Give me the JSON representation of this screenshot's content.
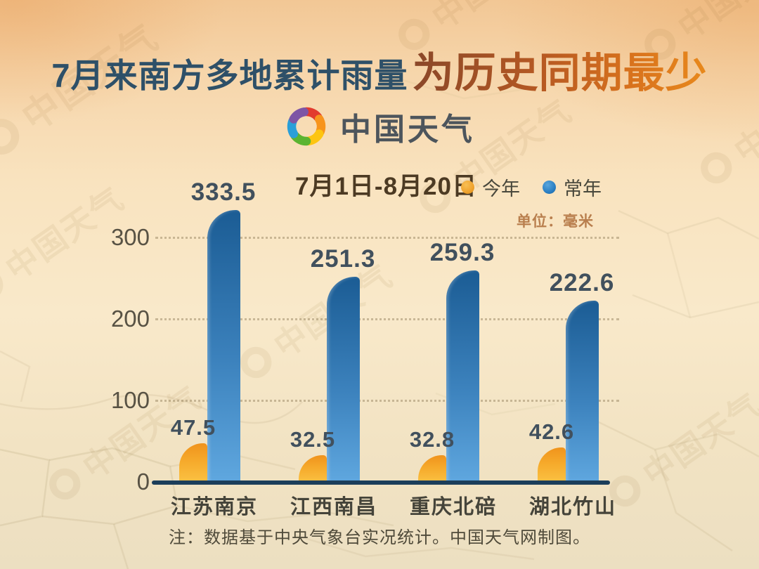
{
  "watermark_text": "中国天气",
  "header": {
    "title_part1": "7月来南方多地累计雨量",
    "title_part2": "为历史同期最少",
    "logo_text": "中国天气"
  },
  "chart_data": {
    "type": "bar",
    "title": "7月1日-8月20日",
    "unit_label": "单位：毫米",
    "legend": [
      {
        "label": "今年",
        "color": "#efa22d"
      },
      {
        "label": "常年",
        "color": "#2b7fc3"
      }
    ],
    "categories": [
      "江苏南京",
      "江西南昌",
      "重庆北碚",
      "湖北竹山"
    ],
    "series": [
      {
        "name": "今年",
        "values": [
          47.5,
          32.5,
          32.8,
          42.6
        ]
      },
      {
        "name": "常年",
        "values": [
          333.5,
          251.3,
          259.3,
          222.6
        ]
      }
    ],
    "y_ticks": [
      0,
      100,
      200,
      300
    ],
    "ylim": [
      0,
      360
    ],
    "grid": "dotted-horizontal",
    "legend_position": "top-right",
    "bar_colors": {
      "this_year_top": "#f0931c",
      "this_year_bottom": "#fbc446",
      "normal_top": "#1b5c94",
      "normal_bottom": "#60a8e0"
    }
  },
  "footer": {
    "note": "注：数据基于中央气象台实况统计。中国天气网制图。"
  }
}
